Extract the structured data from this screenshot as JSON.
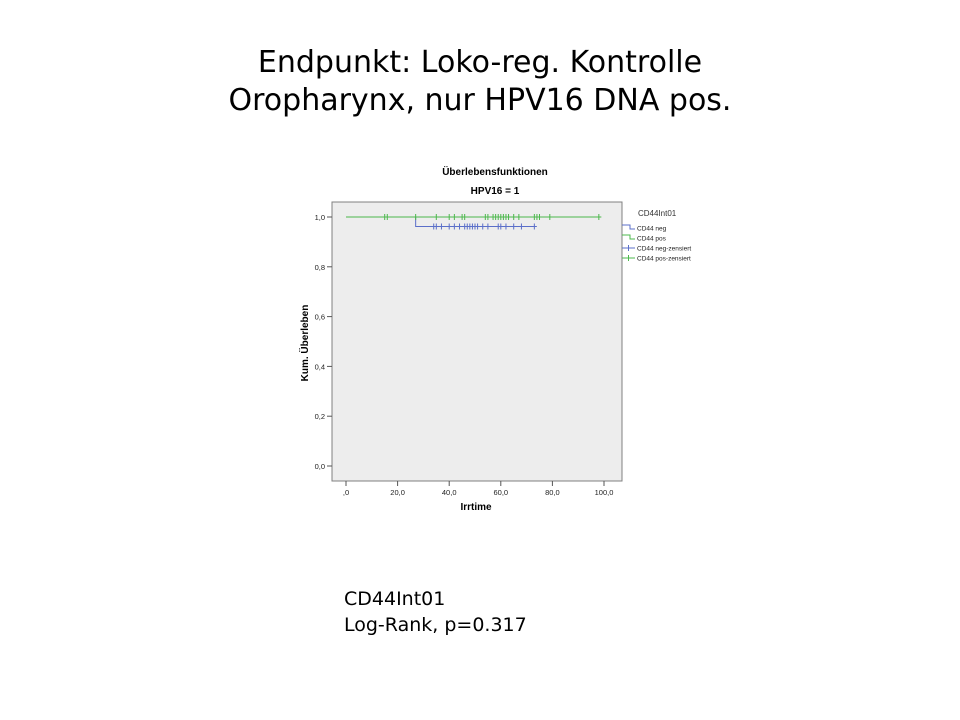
{
  "slide": {
    "title_line1": "Endpunkt: Loko-reg. Kontrolle",
    "title_line2": "Oropharynx, nur HPV16 DNA pos."
  },
  "footnote": {
    "line1": "CD44Int01",
    "line2": "Log-Rank, p=0.317"
  },
  "chart_data": {
    "type": "line",
    "chart_style": "kaplan-meier step",
    "title": "Überlebensfunktionen",
    "subtitle": "HPV16 = 1",
    "xlabel": "Irrtime",
    "ylabel": "Kum. Überleben",
    "xlim": [
      0,
      100
    ],
    "ylim": [
      0,
      1
    ],
    "x_ticks": [
      ",0",
      "20,0",
      "40,0",
      "60,0",
      "80,0",
      "100,0"
    ],
    "y_ticks": [
      "0,0",
      "0,2",
      "0,4",
      "0,6",
      "0,8",
      "1,0"
    ],
    "grid": false,
    "legend_position": "right",
    "legend_title": "CD44Int01",
    "legend": [
      {
        "label": "CD44 neg",
        "kind": "line",
        "color": "#5b6fc9"
      },
      {
        "label": "CD44 pos",
        "kind": "line",
        "color": "#4cb84c"
      },
      {
        "label": "CD44 neg-zensiert",
        "kind": "censor",
        "color": "#5b6fc9"
      },
      {
        "label": "CD44 pos-zensiert",
        "kind": "censor",
        "color": "#4cb84c"
      }
    ],
    "series": [
      {
        "name": "CD44 neg",
        "color": "#5b6fc9",
        "steps": [
          [
            0,
            1.0
          ],
          [
            27,
            1.0
          ],
          [
            27,
            0.962
          ],
          [
            73,
            0.962
          ]
        ],
        "censored": [
          [
            34,
            0.962
          ],
          [
            35,
            0.962
          ],
          [
            37,
            0.962
          ],
          [
            40,
            0.962
          ],
          [
            42,
            0.962
          ],
          [
            44,
            0.962
          ],
          [
            46,
            0.962
          ],
          [
            47,
            0.962
          ],
          [
            48,
            0.962
          ],
          [
            49,
            0.962
          ],
          [
            50,
            0.962
          ],
          [
            51,
            0.962
          ],
          [
            53,
            0.962
          ],
          [
            55,
            0.962
          ],
          [
            59,
            0.962
          ],
          [
            60,
            0.962
          ],
          [
            62,
            0.962
          ],
          [
            65,
            0.962
          ],
          [
            68,
            0.962
          ],
          [
            73,
            0.962
          ]
        ]
      },
      {
        "name": "CD44 pos",
        "color": "#4cb84c",
        "steps": [
          [
            0,
            1.0
          ],
          [
            98,
            1.0
          ]
        ],
        "censored": [
          [
            15,
            1.0
          ],
          [
            16,
            1.0
          ],
          [
            27,
            1.0
          ],
          [
            35,
            1.0
          ],
          [
            40,
            1.0
          ],
          [
            42,
            1.0
          ],
          [
            45,
            1.0
          ],
          [
            46,
            1.0
          ],
          [
            54,
            1.0
          ],
          [
            55,
            1.0
          ],
          [
            57,
            1.0
          ],
          [
            58,
            1.0
          ],
          [
            59,
            1.0
          ],
          [
            60,
            1.0
          ],
          [
            61,
            1.0
          ],
          [
            62,
            1.0
          ],
          [
            63,
            1.0
          ],
          [
            65,
            1.0
          ],
          [
            67,
            1.0
          ],
          [
            73,
            1.0
          ],
          [
            74,
            1.0
          ],
          [
            75,
            1.0
          ],
          [
            79,
            1.0
          ],
          [
            98,
            1.0
          ]
        ]
      }
    ],
    "colors": {
      "plot_bg": "#ededed",
      "frame": "#808080"
    }
  }
}
